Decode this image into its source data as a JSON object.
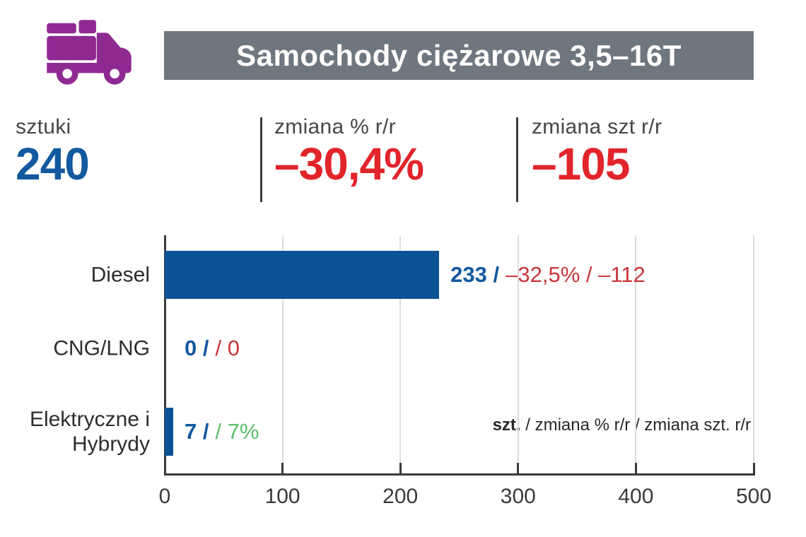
{
  "header": {
    "icon": "truck-icon",
    "icon_color": "#8F2A93",
    "bar_color": "#6E7680",
    "title": "Samochody ciężarowe 3,5–16T",
    "title_color": "#FFFFFF"
  },
  "stats": [
    {
      "label": "sztuki",
      "value": "240",
      "value_color": "#12599F"
    },
    {
      "label": "zmiana % r/r",
      "value": "–30,4%",
      "value_color": "#E2242B"
    },
    {
      "label": "zmiana szt r/r",
      "value": "–105",
      "value_color": "#E2242B"
    }
  ],
  "chart_data": {
    "type": "bar",
    "orientation": "horizontal",
    "title": "",
    "categories": [
      "Diesel",
      "CNG/LNG",
      "Elektryczne i Hybrydy"
    ],
    "values": [
      233,
      0,
      7
    ],
    "xlim": [
      0,
      500
    ],
    "xticks": [
      0,
      100,
      200,
      300,
      400,
      500
    ],
    "grid": "vertical-light",
    "bar_color": "#0B5394",
    "count_color": "#12599F",
    "annotations": [
      {
        "count": "233 /",
        "change": "–32,5% / –112",
        "change_color": "#C9353B"
      },
      {
        "count": "0 /",
        "change": "/ 0",
        "change_color": "#C9353B"
      },
      {
        "count": "7 /",
        "change": "/ 7%",
        "change_color": "#5CBE6B"
      }
    ],
    "legend": {
      "bold": "szt.",
      "rest": " / zmiana % r/r / zmiana szt. r/r"
    }
  }
}
